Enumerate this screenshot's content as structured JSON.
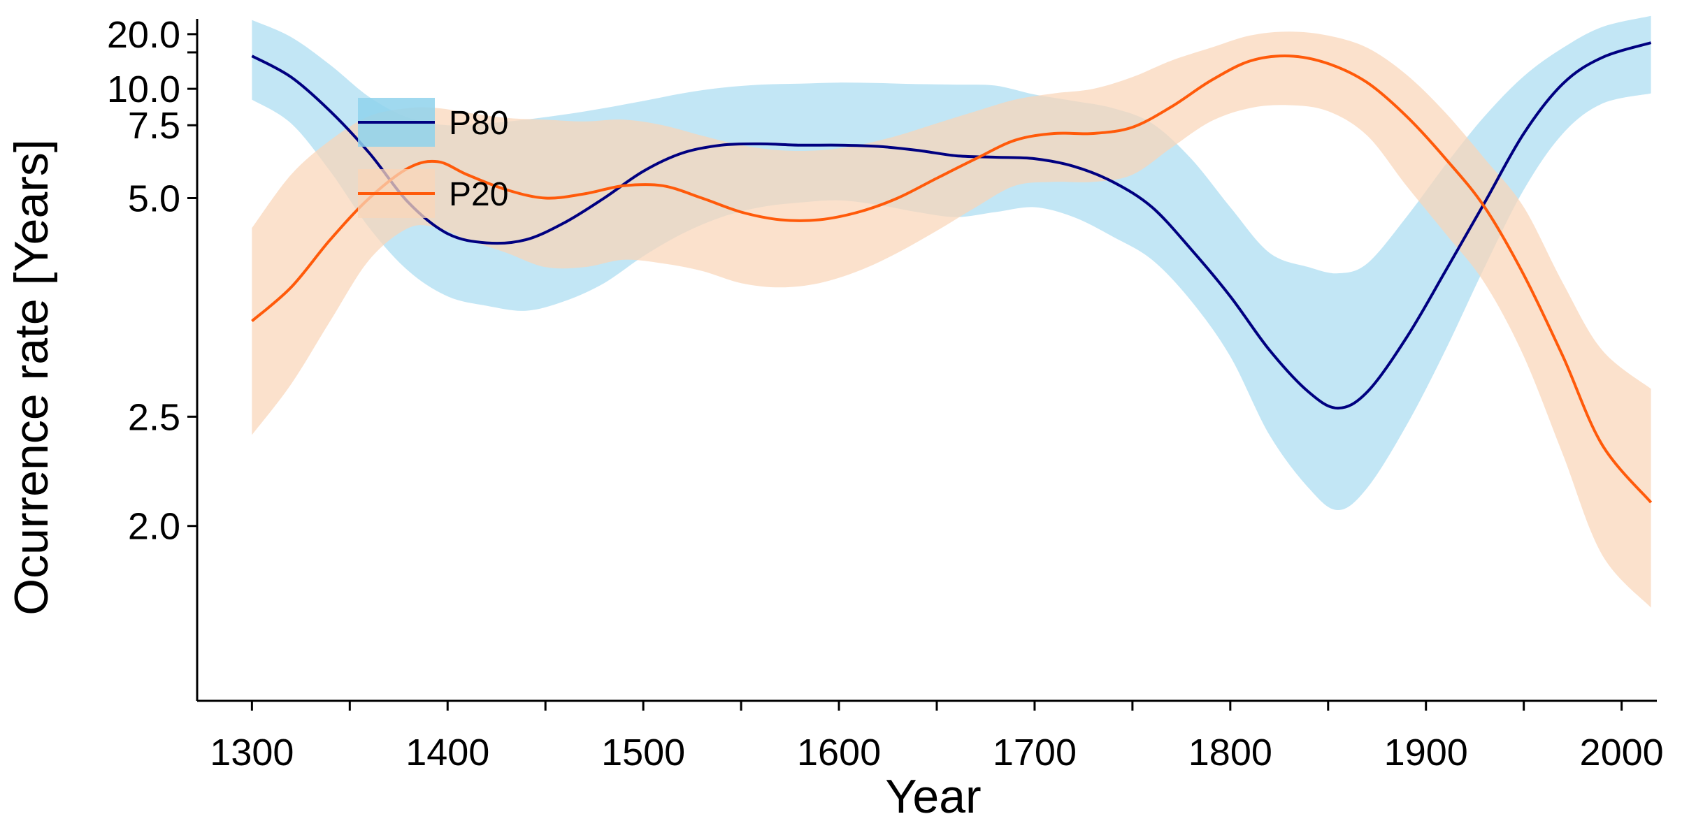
{
  "chart_data": {
    "type": "line",
    "title": "",
    "xlabel": "Year",
    "ylabel": "Ocurrence rate [Years]",
    "xlim": [
      1272,
      2018
    ],
    "x_ticks": [
      1300,
      1400,
      1500,
      1600,
      1700,
      1800,
      1900,
      2000
    ],
    "y_scale": "inverse",
    "ylim_rate": [
      0.66,
      0.036
    ],
    "y_ticks": [
      {
        "value": 2.0,
        "label": "2.0"
      },
      {
        "value": 2.5,
        "label": "2.5"
      },
      {
        "value": 5.0,
        "label": "5.0"
      },
      {
        "value": 7.5,
        "label": "7.5"
      },
      {
        "value": 10.0,
        "label": "10.0"
      },
      {
        "value": 15.0,
        "label": ""
      },
      {
        "value": 20.0,
        "label": "20.0"
      }
    ],
    "grid": false,
    "legend_position": "top-left",
    "colors": {
      "p80_line": "#000080",
      "p80_band": "#8fd2ec",
      "p20_line": "#ff5a0a",
      "p20_band": "#f9d6b8"
    },
    "series": [
      {
        "name": "P80",
        "x": [
          1300,
          1320,
          1340,
          1360,
          1380,
          1400,
          1420,
          1440,
          1460,
          1480,
          1500,
          1520,
          1540,
          1560,
          1580,
          1600,
          1620,
          1640,
          1660,
          1680,
          1700,
          1720,
          1740,
          1760,
          1780,
          1800,
          1820,
          1840,
          1855,
          1870,
          1890,
          1910,
          1930,
          1950,
          1970,
          1990,
          2015
        ],
        "values": [
          14.3,
          11.2,
          8.3,
          6.3,
          4.9,
          4.3,
          4.15,
          4.2,
          4.5,
          5.0,
          5.7,
          6.3,
          6.6,
          6.65,
          6.6,
          6.6,
          6.55,
          6.4,
          6.2,
          6.15,
          6.1,
          5.85,
          5.4,
          4.8,
          4.05,
          3.45,
          2.95,
          2.65,
          2.55,
          2.65,
          3.05,
          3.75,
          4.9,
          7.1,
          10.5,
          14.0,
          17.3
        ],
        "band_upper": [
          9.1,
          7.6,
          5.7,
          4.4,
          3.75,
          3.45,
          3.35,
          3.3,
          3.4,
          3.6,
          3.95,
          4.3,
          4.6,
          4.8,
          4.9,
          4.95,
          4.85,
          4.7,
          4.6,
          4.7,
          4.8,
          4.6,
          4.25,
          3.9,
          3.4,
          2.9,
          2.4,
          2.15,
          2.06,
          2.15,
          2.45,
          2.95,
          3.8,
          5.2,
          7.1,
          8.8,
          9.6
        ],
        "band_lower": [
          27.0,
          19.0,
          12.8,
          9.3,
          7.9,
          7.5,
          7.6,
          7.8,
          8.1,
          8.5,
          9.0,
          9.6,
          10.1,
          10.4,
          10.5,
          10.6,
          10.55,
          10.45,
          10.4,
          10.3,
          9.5,
          9.0,
          8.5,
          7.6,
          6.1,
          4.8,
          4.0,
          3.8,
          3.72,
          3.85,
          4.6,
          5.9,
          8.0,
          11.3,
          16.0,
          23.0,
          30.0
        ]
      },
      {
        "name": "P20",
        "x": [
          1300,
          1320,
          1340,
          1360,
          1380,
          1395,
          1410,
          1430,
          1450,
          1470,
          1490,
          1510,
          1530,
          1550,
          1570,
          1590,
          1610,
          1630,
          1650,
          1670,
          1690,
          1710,
          1730,
          1750,
          1770,
          1790,
          1810,
          1830,
          1850,
          1870,
          1890,
          1910,
          1930,
          1950,
          1970,
          1990,
          2015
        ],
        "values": [
          3.2,
          3.55,
          4.2,
          5.0,
          5.8,
          6.0,
          5.6,
          5.2,
          5.0,
          5.1,
          5.3,
          5.3,
          5.0,
          4.7,
          4.55,
          4.55,
          4.7,
          5.0,
          5.5,
          6.1,
          6.8,
          7.1,
          7.1,
          7.4,
          8.6,
          10.8,
          13.4,
          14.3,
          13.0,
          10.6,
          8.0,
          6.1,
          4.8,
          3.7,
          2.9,
          2.35,
          2.09
        ],
        "band_upper": [
          2.4,
          2.7,
          3.2,
          3.9,
          4.4,
          4.4,
          4.2,
          4.0,
          3.8,
          3.8,
          3.9,
          3.85,
          3.75,
          3.6,
          3.55,
          3.6,
          3.75,
          4.0,
          4.35,
          4.8,
          5.3,
          5.4,
          5.4,
          5.6,
          6.5,
          7.7,
          8.5,
          8.7,
          8.3,
          7.0,
          5.3,
          4.3,
          3.6,
          2.9,
          2.3,
          1.9,
          1.74
        ],
        "band_lower": [
          4.4,
          5.6,
          6.8,
          8.0,
          8.5,
          8.5,
          8.2,
          7.9,
          7.8,
          7.7,
          7.8,
          7.5,
          7.0,
          6.6,
          6.4,
          6.4,
          6.6,
          7.0,
          7.6,
          8.3,
          9.1,
          9.6,
          10.0,
          11.2,
          13.5,
          16.0,
          19.5,
          21.0,
          19.5,
          16.0,
          11.5,
          8.2,
          6.1,
          4.8,
          3.6,
          2.95,
          2.67
        ]
      }
    ]
  }
}
